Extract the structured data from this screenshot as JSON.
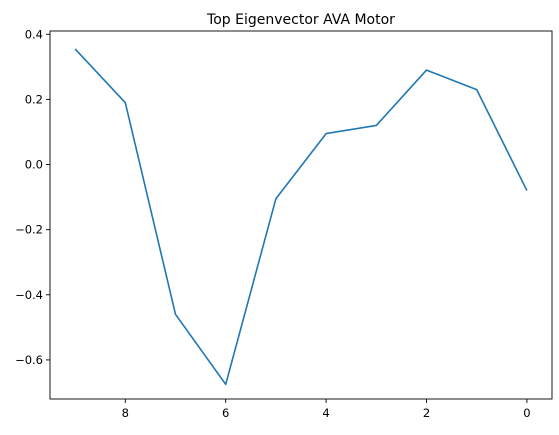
{
  "chart_data": {
    "type": "line",
    "title": "Top Eigenvector AVA Motor",
    "xlabel": "",
    "ylabel": "",
    "x_inverted": true,
    "xlim": [
      9.5,
      -0.5
    ],
    "ylim": [
      -0.72,
      0.41
    ],
    "xticks": [
      8,
      6,
      4,
      2,
      0
    ],
    "yticks": [
      0.4,
      0.2,
      0.0,
      -0.2,
      -0.4,
      -0.6
    ],
    "ytick_labels": [
      "0.4",
      "0.2",
      "0.0",
      "−0.2",
      "−0.4",
      "−0.6"
    ],
    "grid": false,
    "series": [
      {
        "color": "#1f77b4",
        "x": [
          9,
          8,
          7,
          6,
          5,
          4,
          3,
          2,
          1,
          0
        ],
        "y": [
          0.355,
          0.19,
          -0.46,
          -0.675,
          -0.105,
          0.095,
          0.12,
          0.29,
          0.23,
          -0.08
        ]
      }
    ]
  }
}
